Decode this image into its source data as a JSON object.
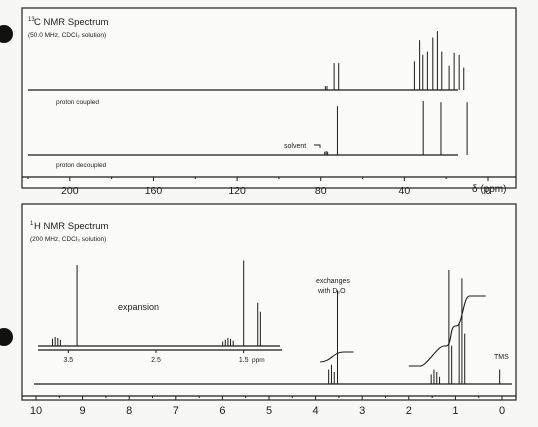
{
  "carbon_panel": {
    "title_sup": "13",
    "title": "C NMR Spectrum",
    "conditions": "(50.0 MHz, CDCl₃ solution)",
    "trace_top_label": "proton coupled",
    "trace_bottom_label": "proton decoupled",
    "solvent_label": "solvent",
    "axis_unit": "δ (ppm)"
  },
  "proton_panel": {
    "title_sup": "1",
    "title": "H NMR Spectrum",
    "conditions": "(200 MHz, CDCl₃ solution)",
    "expansion_label": "expansion",
    "expansion_unit": "ppm",
    "exchange_label_line1": "exchanges",
    "exchange_label_line2": "with D₂O",
    "tms_label": "TMS",
    "axis_unit": "δ (ppm)"
  },
  "chart_data": [
    {
      "type": "line",
      "title": "13C NMR Spectrum",
      "subtitle": "(50.0 MHz, CDCl3 solution)",
      "xlabel": "δ (ppm)",
      "xlim": [
        220,
        0
      ],
      "x_reversed": true,
      "xticks": [
        200,
        160,
        120,
        80,
        40,
        0
      ],
      "series": [
        {
          "name": "proton coupled",
          "peaks": [
            {
              "ppm": 77.8,
              "height": 0.06
            },
            {
              "ppm": 77.0,
              "height": 0.06
            },
            {
              "ppm": 73.6,
              "height": 0.42
            },
            {
              "ppm": 71.4,
              "height": 0.42
            },
            {
              "ppm": 35.2,
              "height": 0.45
            },
            {
              "ppm": 32.7,
              "height": 0.78
            },
            {
              "ppm": 31.2,
              "height": 0.55
            },
            {
              "ppm": 29.0,
              "height": 0.6
            },
            {
              "ppm": 26.4,
              "height": 0.82
            },
            {
              "ppm": 24.2,
              "height": 0.92
            },
            {
              "ppm": 22.1,
              "height": 0.6
            },
            {
              "ppm": 18.6,
              "height": 0.38
            },
            {
              "ppm": 16.2,
              "height": 0.58
            },
            {
              "ppm": 13.8,
              "height": 0.55
            },
            {
              "ppm": 11.6,
              "height": 0.35
            }
          ]
        },
        {
          "name": "proton decoupled",
          "peaks": [
            {
              "ppm": 78.1,
              "height": 0.05
            },
            {
              "ppm": 77.4,
              "height": 0.06
            },
            {
              "ppm": 76.7,
              "height": 0.05
            },
            {
              "ppm": 72.0,
              "height": 0.74
            },
            {
              "ppm": 31.0,
              "height": 0.82
            },
            {
              "ppm": 22.5,
              "height": 0.8
            },
            {
              "ppm": 10.0,
              "height": 0.8
            }
          ]
        }
      ]
    },
    {
      "type": "line",
      "title": "1H NMR Spectrum",
      "subtitle": "(200 MHz, CDCl3 solution)",
      "xlabel": "δ (ppm)",
      "xlim": [
        10,
        0
      ],
      "x_reversed": true,
      "xticks": [
        10,
        9,
        8,
        7,
        6,
        5,
        4,
        3,
        2,
        1,
        0
      ],
      "series": [
        {
          "name": "spectrum",
          "peaks": [
            {
              "ppm": 3.72,
              "height": 0.12
            },
            {
              "ppm": 3.66,
              "height": 0.16
            },
            {
              "ppm": 3.6,
              "height": 0.1
            },
            {
              "ppm": 3.53,
              "height": 0.78
            },
            {
              "ppm": 1.52,
              "height": 0.08
            },
            {
              "ppm": 1.46,
              "height": 0.12
            },
            {
              "ppm": 1.4,
              "height": 0.1
            },
            {
              "ppm": 1.34,
              "height": 0.06
            },
            {
              "ppm": 1.14,
              "height": 0.95
            },
            {
              "ppm": 1.08,
              "height": 0.32
            },
            {
              "ppm": 0.92,
              "height": 0.5
            },
            {
              "ppm": 0.86,
              "height": 0.88
            },
            {
              "ppm": 0.8,
              "height": 0.42
            },
            {
              "ppm": 0.05,
              "height": 0.12
            }
          ],
          "integral_steps": [
            {
              "from": 3.9,
              "to": 3.4,
              "rise": 0.1
            },
            {
              "from": 1.75,
              "to": 1.25,
              "rise": 0.2
            },
            {
              "from": 1.2,
              "to": 1.0,
              "rise": 0.2
            },
            {
              "from": 0.98,
              "to": 0.7,
              "rise": 0.3
            }
          ],
          "annotations": [
            {
              "ppm": 3.53,
              "text": "exchanges with D2O"
            },
            {
              "ppm": 0.0,
              "text": "TMS"
            }
          ]
        },
        {
          "name": "expansion",
          "xlim": [
            3.8,
            1.2
          ],
          "xticks": [
            3.5,
            2.5,
            1.5
          ],
          "peaks": [
            {
              "ppm": 3.68,
              "height": 0.08
            },
            {
              "ppm": 3.65,
              "height": 0.1
            },
            {
              "ppm": 3.62,
              "height": 0.09
            },
            {
              "ppm": 3.59,
              "height": 0.07
            },
            {
              "ppm": 3.4,
              "height": 0.9
            },
            {
              "ppm": 1.74,
              "height": 0.05
            },
            {
              "ppm": 1.71,
              "height": 0.07
            },
            {
              "ppm": 1.68,
              "height": 0.09
            },
            {
              "ppm": 1.65,
              "height": 0.08
            },
            {
              "ppm": 1.62,
              "height": 0.06
            },
            {
              "ppm": 1.5,
              "height": 0.95
            },
            {
              "ppm": 1.34,
              "height": 0.48
            },
            {
              "ppm": 1.31,
              "height": 0.38
            }
          ]
        }
      ]
    }
  ]
}
